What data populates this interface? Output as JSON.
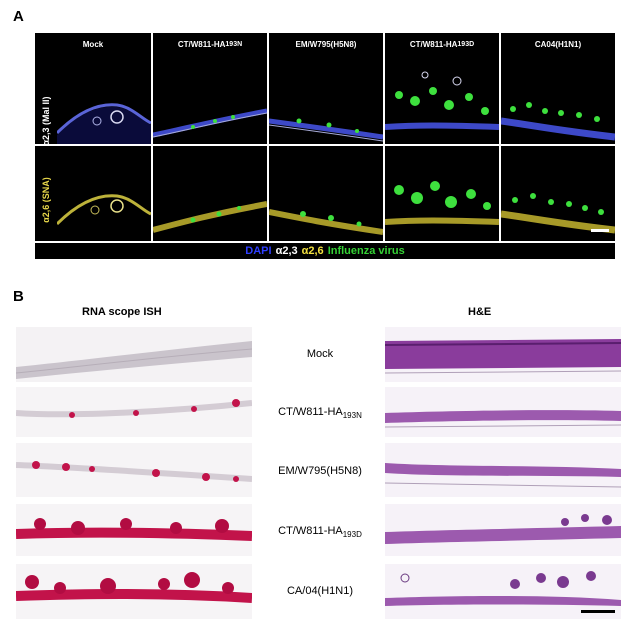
{
  "panel_a": {
    "letter": "A",
    "columns": [
      "Mock",
      "CT/W811-HA",
      "EM/W795(H5N8)",
      "CT/W811-HA",
      "CA04(H1N1)"
    ],
    "column_subscripts": [
      "",
      "193N",
      "",
      "193D",
      ""
    ],
    "rows": [
      {
        "label": "α2,3 (Mal II)",
        "color": "#ffffff"
      },
      {
        "label": "α2,6 (SNA)",
        "color": "#e8d84a"
      }
    ],
    "legend": [
      {
        "text": "DAPI",
        "color": "#2f3fff"
      },
      {
        "text": "α2,3",
        "color": "#ffffff"
      },
      {
        "text": "α2,6",
        "color": "#f2e040"
      },
      {
        "text": "Influenza virus",
        "color": "#35d135"
      }
    ]
  },
  "panel_b": {
    "letter": "B",
    "left_title": "RNA scope ISH",
    "right_title": "H&E",
    "rows": [
      {
        "label": "Mock",
        "sub": ""
      },
      {
        "label": "CT/W811-HA",
        "sub": "193N"
      },
      {
        "label": "EM/W795(H5N8)",
        "sub": ""
      },
      {
        "label": "CT/W811-HA",
        "sub": "193D"
      },
      {
        "label": "CA/04(H1N1)",
        "sub": ""
      }
    ]
  }
}
